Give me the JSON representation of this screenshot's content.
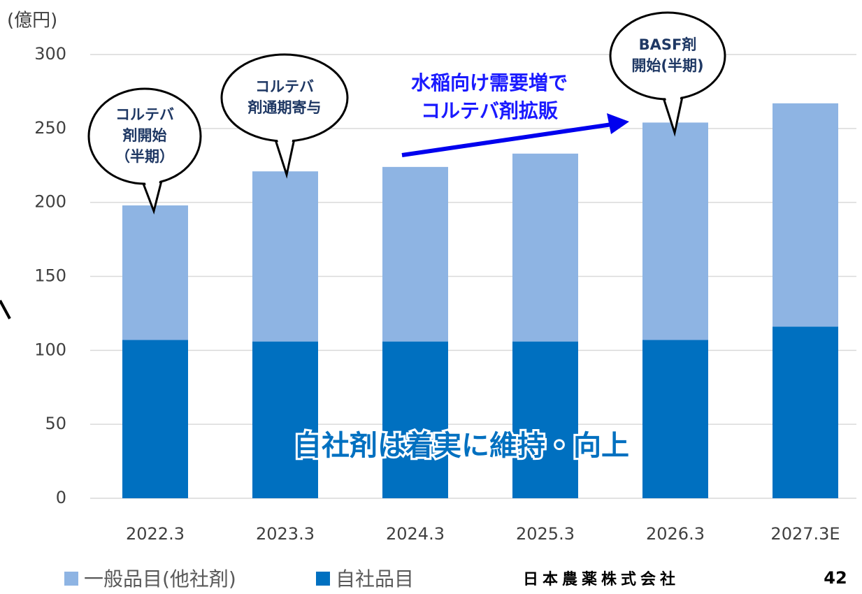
{
  "chart_data": {
    "type": "stacked_bar",
    "y_label": "(億円)",
    "categories": [
      "2022.3",
      "2023.3",
      "2024.3",
      "2025.3",
      "2026.3",
      "2027.3E"
    ],
    "series": [
      {
        "name": "一般品目(他社剤)",
        "color": "#8eb4e3",
        "values": [
          91,
          115,
          118,
          127,
          147,
          151
        ]
      },
      {
        "name": "自社品目",
        "color": "#0070c0",
        "values": [
          107,
          106,
          106,
          106,
          107,
          116
        ]
      }
    ],
    "ylim": [
      0,
      300
    ],
    "yticks": [
      0,
      50,
      100,
      150,
      200,
      250,
      300
    ],
    "grid": true,
    "callouts": [
      {
        "lines": [
          "コルテバ",
          "剤開始",
          "（半期）"
        ]
      },
      {
        "lines": [
          "コルテバ",
          "剤通期寄与"
        ]
      },
      {
        "lines": [
          "BASF剤",
          "開始(半期)"
        ]
      }
    ],
    "arrow_text": [
      "水稲向け需要増で",
      "コルテバ剤拡販"
    ],
    "highlight": "自社剤は着実に維持・向上",
    "footer": "日本農薬株式会社",
    "page": "42"
  }
}
